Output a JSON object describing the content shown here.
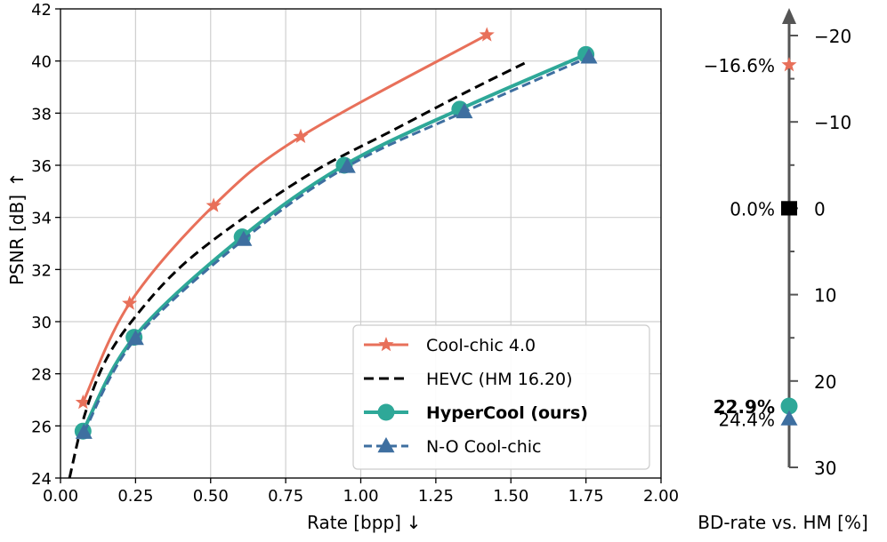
{
  "chart_data": [
    {
      "type": "line",
      "xlabel": "Rate [bpp]",
      "xlabel_arrow": "↓",
      "ylabel": "PSNR [dB]",
      "ylabel_arrow": "↑",
      "xlim": [
        0.0,
        2.0
      ],
      "ylim": [
        24,
        42
      ],
      "xticks": [
        0.0,
        0.25,
        0.5,
        0.75,
        1.0,
        1.25,
        1.5,
        1.75,
        2.0
      ],
      "xtick_labels": [
        "0.00",
        "0.25",
        "0.50",
        "0.75",
        "1.00",
        "1.25",
        "1.50",
        "1.75",
        "2.00"
      ],
      "yticks": [
        24,
        26,
        28,
        30,
        32,
        34,
        36,
        38,
        40,
        42
      ],
      "ytick_labels": [
        "24",
        "26",
        "28",
        "30",
        "32",
        "34",
        "36",
        "38",
        "40",
        "42"
      ],
      "grid": true,
      "legend_position": "bottom-right",
      "series": [
        {
          "name": "Cool-chic 4.0",
          "color": "#e8705a",
          "line_style": "solid",
          "marker": "star",
          "bold": false,
          "x": [
            0.075,
            0.23,
            0.51,
            0.8,
            1.42
          ],
          "y": [
            26.9,
            30.7,
            34.45,
            37.1,
            41.0
          ]
        },
        {
          "name": "HEVC (HM 16.20)",
          "color": "#000000",
          "line_style": "dashed",
          "marker": "none",
          "bold": false,
          "x": [
            0.03,
            0.08,
            0.15,
            0.25,
            0.4,
            0.6,
            0.85,
            1.1,
            1.35,
            1.56
          ],
          "y": [
            24.0,
            26.4,
            28.5,
            30.2,
            32.1,
            33.9,
            35.8,
            37.3,
            38.8,
            40.0
          ]
        },
        {
          "name": "HyperCool (ours)",
          "color": "#2ea898",
          "line_style": "solid",
          "marker": "circle",
          "bold": true,
          "x": [
            0.075,
            0.245,
            0.605,
            0.945,
            1.33,
            1.75
          ],
          "y": [
            25.8,
            29.4,
            33.25,
            36.0,
            38.15,
            40.25
          ]
        },
        {
          "name": "N-O Cool-chic",
          "color": "#3e6fa0",
          "line_style": "dashed",
          "marker": "triangle",
          "bold": false,
          "x": [
            0.078,
            0.25,
            0.61,
            0.955,
            1.345,
            1.76
          ],
          "y": [
            25.75,
            29.35,
            33.15,
            35.95,
            38.05,
            40.15
          ]
        }
      ]
    },
    {
      "type": "scatter",
      "xlabel": "BD-rate vs. HM [%]",
      "ylim": [
        -20,
        30
      ],
      "inverted": true,
      "yticks": [
        -20,
        -10,
        0,
        10,
        20,
        30
      ],
      "ytick_labels": [
        "−20",
        "−10",
        "0",
        "10",
        "20",
        "30"
      ],
      "points": [
        {
          "name": "Cool-chic 4.0",
          "value": -16.6,
          "label": "−16.6%",
          "marker": "star",
          "color": "#e8705a",
          "bold": false
        },
        {
          "name": "HEVC (HM 16.20)",
          "value": 0.0,
          "label": "0.0%",
          "marker": "square",
          "color": "#000000",
          "bold": false
        },
        {
          "name": "HyperCool (ours)",
          "value": 22.9,
          "label": "22.9%",
          "marker": "circle",
          "color": "#2ea898",
          "bold": true
        },
        {
          "name": "N-O Cool-chic",
          "value": 24.4,
          "label": "24.4%",
          "marker": "triangle",
          "color": "#3e6fa0",
          "bold": false
        }
      ]
    }
  ]
}
